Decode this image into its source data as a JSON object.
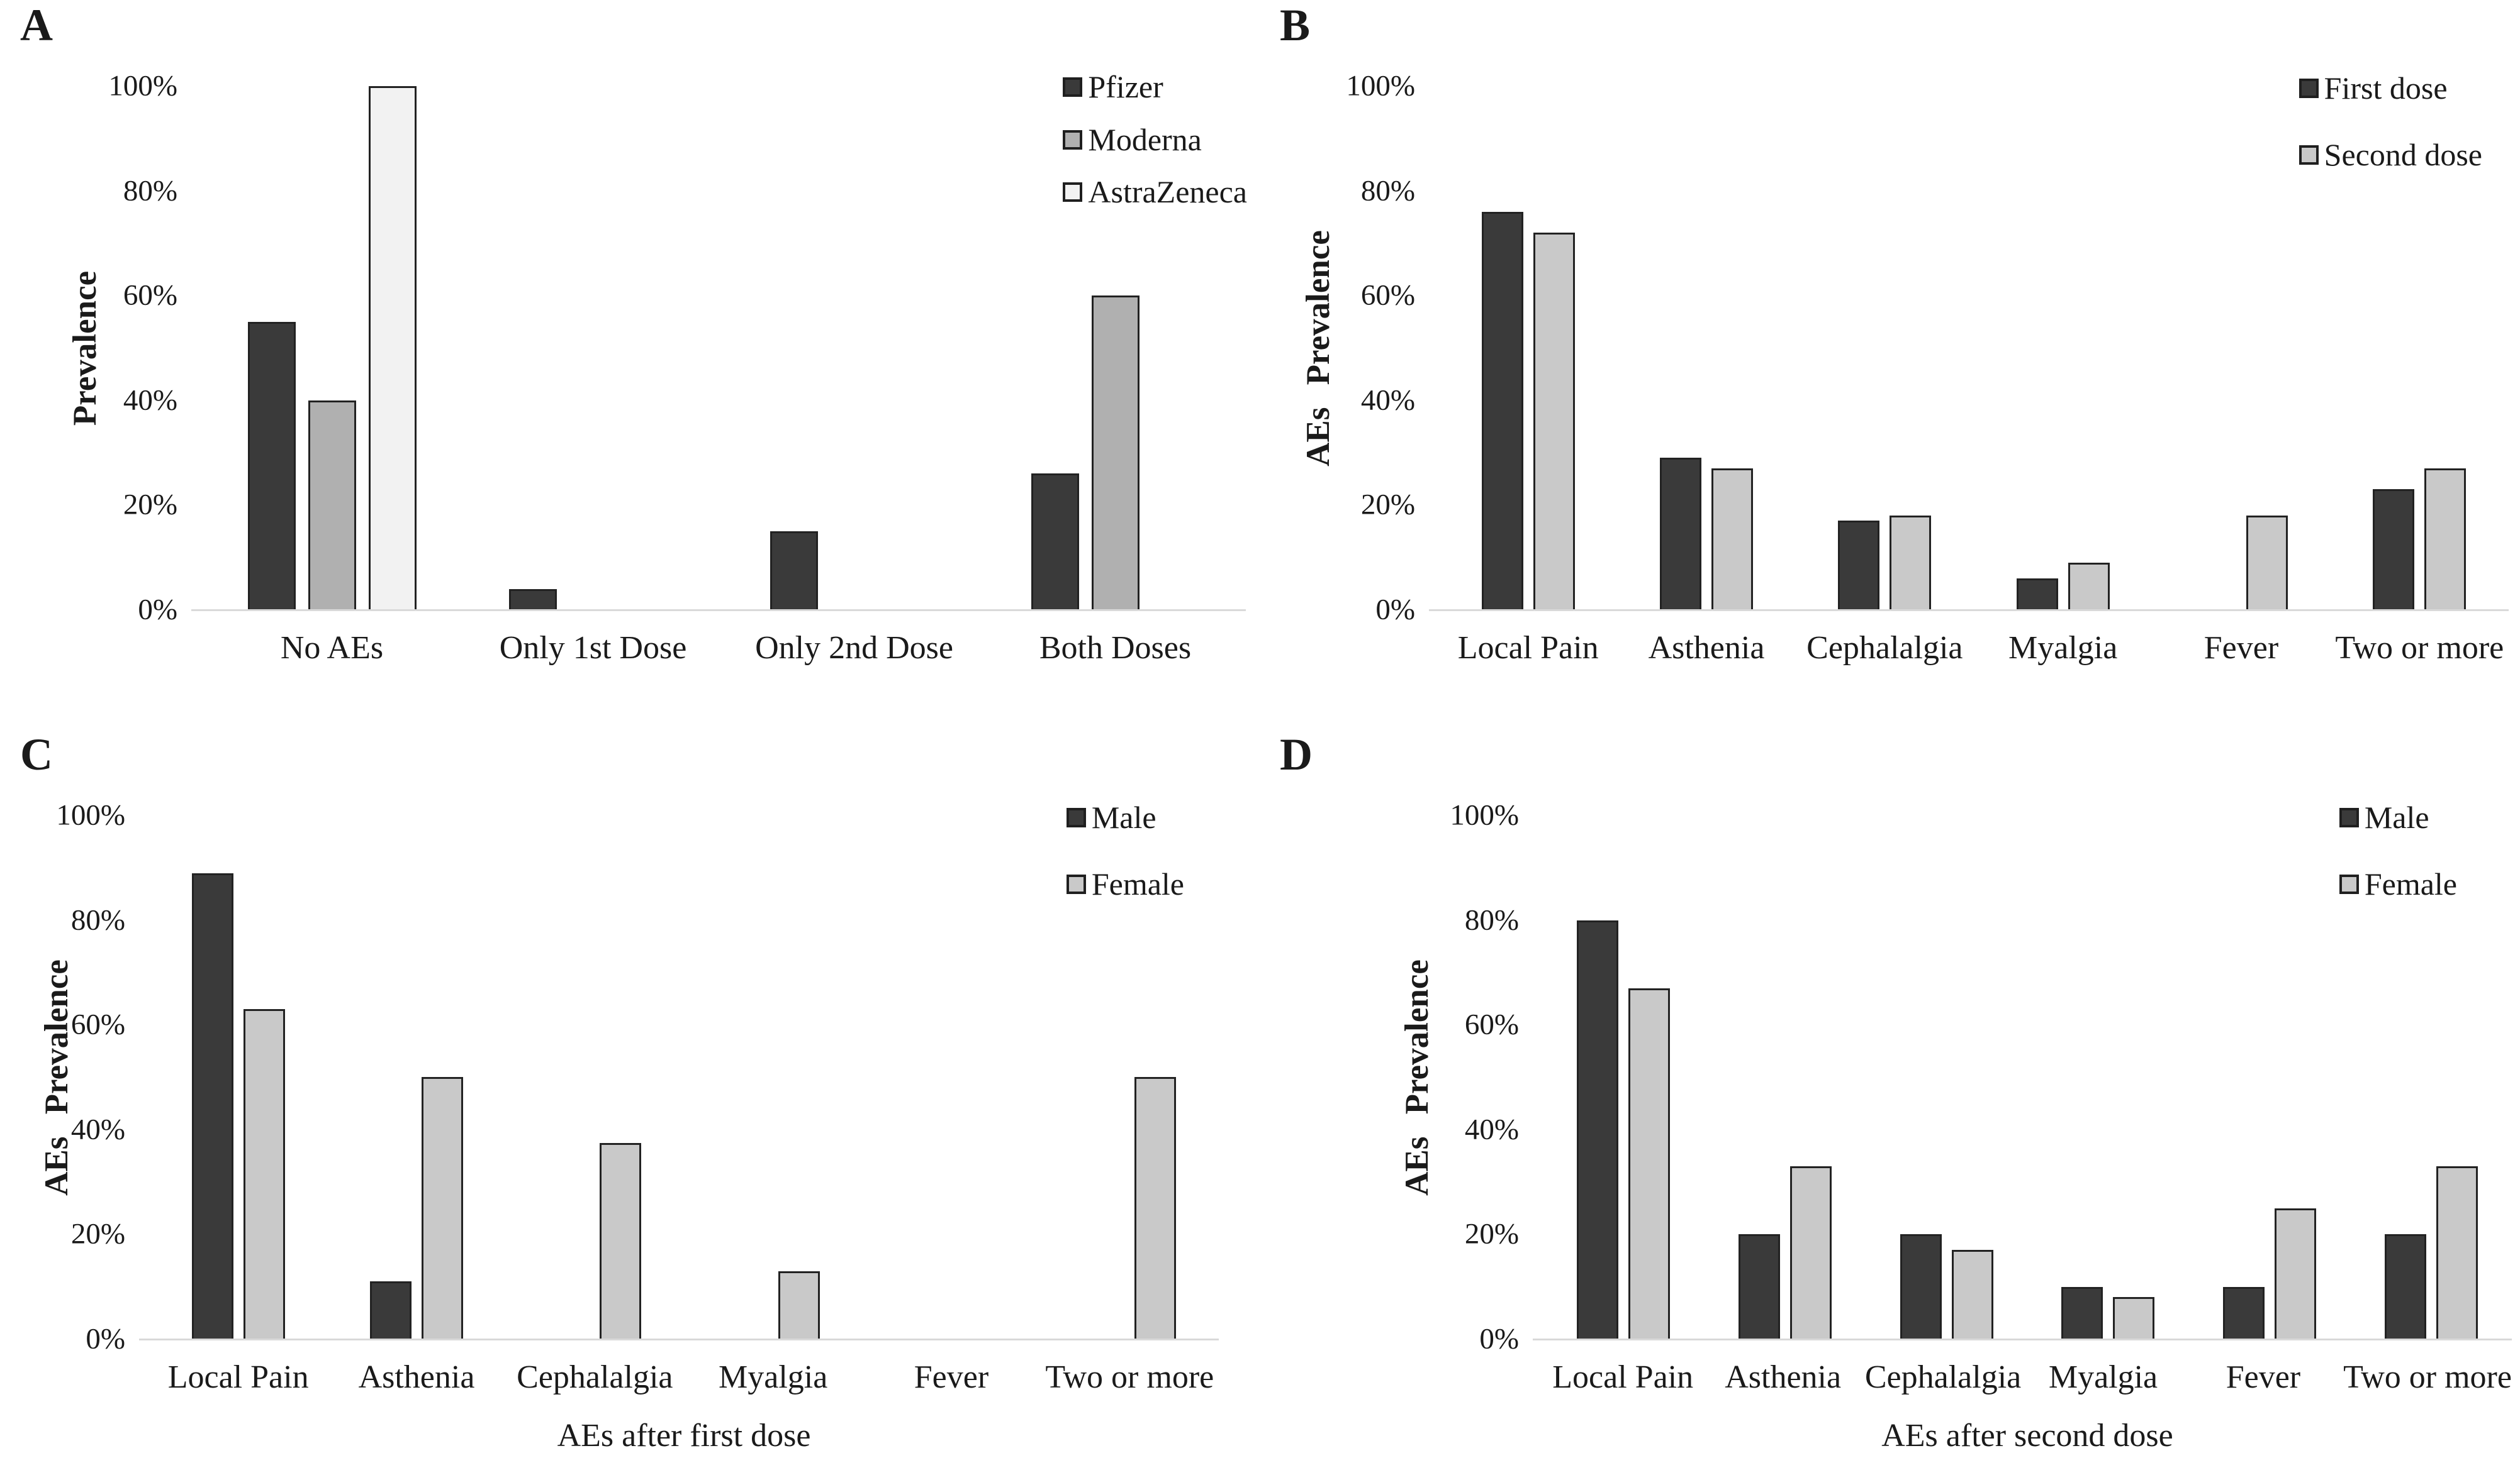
{
  "figure": {
    "background": "#ffffff",
    "text_color": "#1a1a1a",
    "axis_line_color": "#d9d9d9",
    "bar_border_color": "#222222"
  },
  "chart_data": [
    {
      "panel": "A",
      "type": "bar",
      "title": "",
      "xlabel": "",
      "ylabel": "Prevalence",
      "ylim": [
        0,
        100
      ],
      "yticks": [
        "0%",
        "20%",
        "40%",
        "60%",
        "80%",
        "100%"
      ],
      "grid": false,
      "legend_position": "top-right",
      "categories": [
        "No AEs",
        "Only 1st Dose",
        "Only 2nd Dose",
        "Both Doses"
      ],
      "series": [
        {
          "name": "Pfizer",
          "color": "#3a3a3a",
          "values": [
            55,
            4,
            15,
            26
          ]
        },
        {
          "name": "Moderna",
          "color": "#b0b0b0",
          "values": [
            40,
            0,
            0,
            60
          ]
        },
        {
          "name": "AstraZeneca",
          "color": "#f2f2f2",
          "values": [
            100,
            0,
            0,
            0
          ]
        }
      ]
    },
    {
      "panel": "B",
      "type": "bar",
      "title": "",
      "xlabel": "",
      "ylabel": "AEs Prevalence",
      "ylim": [
        0,
        100
      ],
      "yticks": [
        "0%",
        "20%",
        "40%",
        "60%",
        "80%",
        "100%"
      ],
      "grid": false,
      "legend_position": "top-right",
      "categories": [
        "Local Pain",
        "Asthenia",
        "Cephalalgia",
        "Myalgia",
        "Fever",
        "Two or more"
      ],
      "series": [
        {
          "name": "First dose",
          "color": "#3a3a3a",
          "values": [
            76,
            29,
            17,
            6,
            0,
            23
          ]
        },
        {
          "name": "Second dose",
          "color": "#c9c9c9",
          "values": [
            72,
            27,
            18,
            9,
            18,
            27
          ]
        }
      ]
    },
    {
      "panel": "C",
      "type": "bar",
      "title": "",
      "xlabel": "AEs after first dose",
      "ylabel": "AEs Prevalence",
      "ylim": [
        0,
        100
      ],
      "yticks": [
        "0%",
        "20%",
        "40%",
        "60%",
        "80%",
        "100%"
      ],
      "grid": false,
      "legend_position": "top-right",
      "categories": [
        "Local Pain",
        "Asthenia",
        "Cephalalgia",
        "Myalgia",
        "Fever",
        "Two or more"
      ],
      "series": [
        {
          "name": "Male",
          "color": "#3a3a3a",
          "values": [
            89,
            11,
            0,
            0,
            0,
            0
          ]
        },
        {
          "name": "Female",
          "color": "#c9c9c9",
          "values": [
            63,
            50,
            37.5,
            13,
            0,
            50
          ]
        }
      ]
    },
    {
      "panel": "D",
      "type": "bar",
      "title": "",
      "xlabel": "AEs after second dose",
      "ylabel": "AEs Prevalence",
      "ylim": [
        0,
        100
      ],
      "yticks": [
        "0%",
        "20%",
        "40%",
        "60%",
        "80%",
        "100%"
      ],
      "grid": false,
      "legend_position": "top-right",
      "categories": [
        "Local Pain",
        "Asthenia",
        "Cephalalgia",
        "Myalgia",
        "Fever",
        "Two or more"
      ],
      "series": [
        {
          "name": "Male",
          "color": "#3a3a3a",
          "values": [
            80,
            20,
            20,
            10,
            10,
            20
          ]
        },
        {
          "name": "Female",
          "color": "#c9c9c9",
          "values": [
            67,
            33,
            17,
            8,
            25,
            33
          ]
        }
      ]
    }
  ]
}
